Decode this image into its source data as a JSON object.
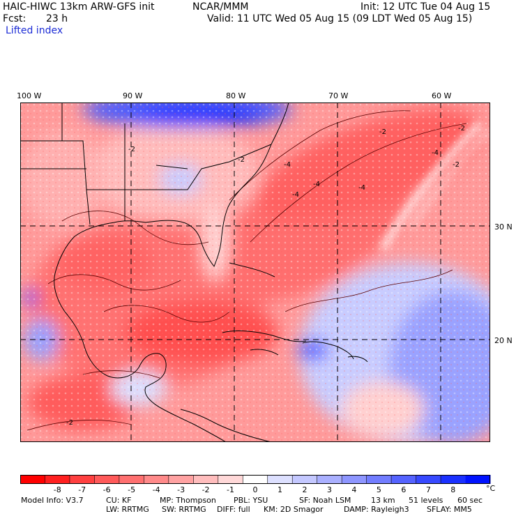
{
  "header": {
    "model_title": "HAIC-HIWC 13km ARW-GFS init",
    "org": "NCAR/MMM",
    "init": "Init: 12 UTC Tue 04 Aug 15",
    "fcst_label": "Fcst:",
    "fcst_value": "23 h",
    "valid": "Valid: 11 UTC Wed 05 Aug 15 (09 LDT Wed 05 Aug 15)",
    "field": "Lifted index"
  },
  "map": {
    "lon_labels": [
      "100 W",
      "90 W",
      "80 W",
      "70 W",
      "60 W"
    ],
    "lat_labels": [
      "30 N",
      "20 N"
    ],
    "contour_labels": [
      "-2",
      "-4",
      "-2",
      "-4",
      "-4",
      "-4",
      "-2",
      "-2",
      "-2",
      "-4",
      "-2"
    ]
  },
  "colorbar": {
    "ticks": [
      "-8",
      "-7",
      "-6",
      "-5",
      "-4",
      "-3",
      "-2",
      "-1",
      "0",
      "1",
      "2",
      "3",
      "4",
      "5",
      "6",
      "7",
      "8"
    ],
    "unit": "°C",
    "colors": [
      "#ff0000",
      "#ff2020",
      "#ff4040",
      "#ff5a5a",
      "#ff7070",
      "#ff8a8a",
      "#ffa2a2",
      "#ffbdbd",
      "#ffd8d8",
      "#ffffff",
      "#dde0ff",
      "#c4c8ff",
      "#aab0ff",
      "#8e96ff",
      "#727dff",
      "#5563ff",
      "#3749ff",
      "#1a30ff",
      "#0012ff"
    ]
  },
  "model_info": {
    "line1": {
      "model": "Model Info: V3.7",
      "cu": "CU: KF",
      "mp": "MP: Thompson",
      "pbl": "PBL: YSU",
      "sf": "SF: Noah LSM",
      "res": "13 km",
      "levels": "51 levels",
      "dt": "60 sec"
    },
    "line2": {
      "lw": "LW: RRTMG",
      "sw": "SW: RRTMG",
      "diff": "DIFF: full",
      "km": "KM: 2D Smagor",
      "damp": "DAMP: Rayleigh3",
      "sflay": "SFLAY: MM5"
    }
  }
}
